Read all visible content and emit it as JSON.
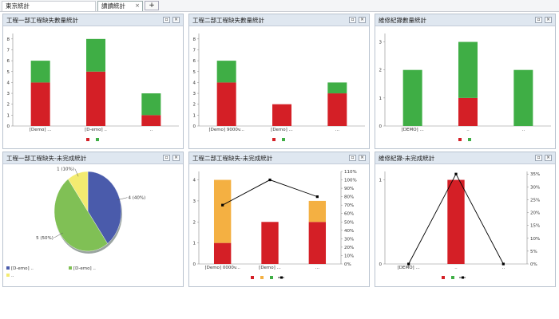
{
  "tabs": [
    {
      "label": "東京統計",
      "active": false
    },
    {
      "label": "讀讀統計",
      "active": true,
      "close": "×"
    }
  ],
  "add_tab_label": "+",
  "panel_buttons": {
    "restore": "▫",
    "close": "×"
  },
  "colors": {
    "red": "#d41f26",
    "green": "#3fae45",
    "orange": "#f4b042",
    "blue": "#4a5bab",
    "lightgreen": "#80c055",
    "yellow": "#f3eb70",
    "line": "#000000"
  },
  "panels": [
    {
      "id": "p1",
      "title": "工程一部工程缺失數量統計"
    },
    {
      "id": "p2",
      "title": "工程二部工程缺失數量統計"
    },
    {
      "id": "p3",
      "title": "維修紀錄數量統計"
    },
    {
      "id": "p4",
      "title": "工程一部工程缺失-未完成統計"
    },
    {
      "id": "p5",
      "title": "工程二部工程缺失-未完成統計"
    },
    {
      "id": "p6",
      "title": "維修紀錄-未完成統計"
    }
  ],
  "chart_data": [
    {
      "panel": "p1",
      "type": "bar",
      "stacked": true,
      "categories": [
        "[Demo] ...",
        "[D-emo] ..",
        ".."
      ],
      "series": [
        {
          "color": "red",
          "values": [
            4,
            5,
            1
          ]
        },
        {
          "color": "green",
          "values": [
            2,
            3,
            2
          ]
        }
      ],
      "yticks": [
        "0",
        "1",
        "2",
        "3",
        "4",
        "5",
        "6",
        "7",
        "8"
      ],
      "ylim": [
        0,
        8.5
      ]
    },
    {
      "panel": "p2",
      "type": "bar",
      "stacked": true,
      "categories": [
        "[Demo] 9000v...",
        "[Demo] ...",
        "..."
      ],
      "series": [
        {
          "color": "red",
          "values": [
            4,
            2,
            3
          ]
        },
        {
          "color": "green",
          "values": [
            2,
            0,
            1
          ]
        }
      ],
      "yticks": [
        "0",
        "1",
        "2",
        "3",
        "4",
        "5",
        "6",
        "7",
        "8"
      ],
      "ylim": [
        0,
        8.5
      ]
    },
    {
      "panel": "p3",
      "type": "bar",
      "stacked": true,
      "categories": [
        "[DEMO] ...",
        "..",
        ".."
      ],
      "series": [
        {
          "color": "red",
          "values": [
            0,
            1,
            0
          ]
        },
        {
          "color": "green",
          "values": [
            2,
            2,
            2
          ]
        }
      ],
      "yticks": [
        "0",
        "1",
        "2",
        "3"
      ],
      "ylim": [
        0,
        3.3
      ]
    },
    {
      "panel": "p4",
      "type": "pie",
      "slices": [
        {
          "value": 4,
          "label": "4 (40%)",
          "color": "blue"
        },
        {
          "value": 5,
          "label": "5 (50%)",
          "color": "lightgreen"
        },
        {
          "value": 1,
          "label": "1 (10%)",
          "color": "yellow"
        }
      ],
      "legend": [
        "[D-emo] ..",
        "[D-emo] ..",
        ".."
      ]
    },
    {
      "panel": "p5",
      "type": "bar",
      "stacked": true,
      "categories": [
        "[Demo] 0000v...",
        "[Demo] ...",
        "..."
      ],
      "series": [
        {
          "color": "red",
          "values": [
            1,
            2,
            2
          ]
        },
        {
          "color": "orange",
          "values": [
            3,
            0,
            1
          ]
        }
      ],
      "line": [
        70,
        100,
        80
      ],
      "yticks": [
        "0",
        "1",
        "2",
        "3",
        "4"
      ],
      "ylim": [
        0,
        4.4
      ],
      "y2ticks": [
        "0%",
        "10%",
        "20%",
        "30%",
        "40%",
        "50%",
        "60%",
        "70%",
        "80%",
        "90%",
        "100%",
        "110%"
      ],
      "y2lim": [
        0,
        110
      ]
    },
    {
      "panel": "p6",
      "type": "bar",
      "stacked": true,
      "categories": [
        "[DEMO] ...",
        "..",
        ".."
      ],
      "series": [
        {
          "color": "red",
          "values": [
            0,
            1,
            0
          ]
        }
      ],
      "line": [
        0,
        35,
        0
      ],
      "yticks": [
        "0",
        "1"
      ],
      "ylim": [
        0,
        1.1
      ],
      "y2ticks": [
        "0%",
        "5%",
        "10%",
        "15%",
        "20%",
        "25%",
        "30%",
        "35%"
      ],
      "y2lim": [
        0,
        36
      ]
    }
  ]
}
